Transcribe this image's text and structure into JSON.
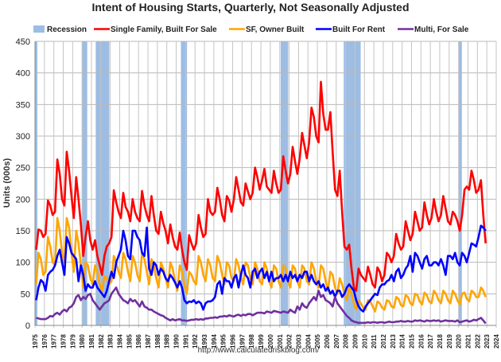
{
  "chart_data": {
    "type": "line",
    "title": "Intent of Housing Starts, Quarterly, Not Seasonally Adjusted",
    "ylabel": "Units (000s)",
    "xlabel": "",
    "source": "http://www.calculatedriskblog.com/",
    "ylim": [
      0,
      450
    ],
    "yticks": [
      0,
      50,
      100,
      150,
      200,
      250,
      300,
      350,
      400,
      450
    ],
    "xlim": [
      1975,
      2024
    ],
    "xticks": [
      "1975",
      "1976",
      "1977",
      "1978",
      "1979",
      "1980",
      "1981",
      "1982",
      "1983",
      "1984",
      "1985",
      "1986",
      "1987",
      "1988",
      "1989",
      "1990",
      "1991",
      "1992",
      "1993",
      "1994",
      "1995",
      "1996",
      "1997",
      "1998",
      "1999",
      "2000",
      "2001",
      "2002",
      "2003",
      "2004",
      "2005",
      "2006",
      "2007",
      "2008",
      "2009",
      "2010",
      "2011",
      "2012",
      "2013",
      "2014",
      "2015",
      "2016",
      "2017",
      "2018",
      "2019",
      "2020",
      "2021",
      "2022",
      "2023",
      "2024"
    ],
    "grid": true,
    "legend_position": "top",
    "start_period": "1975 Q1",
    "frequency": "quarterly",
    "recession": {
      "name": "Recession",
      "color": "#9dbde3",
      "periods": [
        [
          1975.0,
          1975.25
        ],
        [
          1980.0,
          1980.55
        ],
        [
          1981.45,
          1982.9
        ],
        [
          1990.5,
          1991.15
        ],
        [
          2001.1,
          2001.9
        ],
        [
          2007.8,
          2009.6
        ],
        [
          2020.0,
          2020.35
        ]
      ]
    },
    "series": [
      {
        "name": "Single Family, Built For Sale",
        "color": "#ff0000",
        "values": [
          120,
          152,
          150,
          140,
          145,
          198,
          190,
          175,
          180,
          263,
          240,
          200,
          190,
          275,
          245,
          205,
          170,
          235,
          200,
          160,
          110,
          140,
          165,
          135,
          120,
          135,
          110,
          95,
          80,
          110,
          125,
          130,
          140,
          214,
          195,
          180,
          170,
          210,
          188,
          180,
          165,
          200,
          180,
          170,
          165,
          213,
          190,
          175,
          165,
          205,
          175,
          150,
          145,
          180,
          162,
          150,
          130,
          160,
          140,
          125,
          120,
          147,
          120,
          100,
          88,
          143,
          130,
          120,
          130,
          175,
          155,
          140,
          145,
          200,
          180,
          175,
          180,
          218,
          200,
          175,
          165,
          205,
          198,
          180,
          200,
          235,
          215,
          195,
          190,
          225,
          212,
          200,
          210,
          250,
          235,
          215,
          230,
          248,
          220,
          215,
          210,
          245,
          225,
          210,
          215,
          268,
          245,
          225,
          240,
          283,
          260,
          240,
          265,
          305,
          285,
          265,
          290,
          345,
          330,
          300,
          290,
          386,
          335,
          310,
          310,
          338,
          275,
          215,
          205,
          245,
          180,
          125,
          120,
          128,
          90,
          60,
          55,
          90,
          80,
          75,
          70,
          93,
          80,
          65,
          60,
          92,
          85,
          70,
          80,
          115,
          110,
          100,
          110,
          145,
          130,
          120,
          125,
          165,
          150,
          135,
          145,
          180,
          165,
          150,
          155,
          195,
          175,
          160,
          170,
          200,
          180,
          165,
          175,
          205,
          185,
          165,
          160,
          180,
          175,
          165,
          150,
          175,
          215,
          220,
          215,
          245,
          230,
          210,
          215,
          230,
          175,
          130
        ]
      },
      {
        "name": "SF, Owner Built",
        "color": "#ffa500",
        "values": [
          65,
          115,
          105,
          80,
          85,
          140,
          125,
          100,
          95,
          170,
          150,
          115,
          100,
          170,
          155,
          115,
          85,
          150,
          130,
          95,
          60,
          100,
          95,
          75,
          65,
          95,
          85,
          65,
          55,
          78,
          75,
          65,
          70,
          110,
          100,
          85,
          75,
          115,
          105,
          85,
          70,
          110,
          100,
          80,
          70,
          115,
          105,
          85,
          65,
          105,
          95,
          75,
          60,
          100,
          90,
          75,
          60,
          100,
          90,
          70,
          55,
          95,
          85,
          65,
          50,
          85,
          80,
          70,
          65,
          110,
          100,
          80,
          70,
          105,
          95,
          75,
          70,
          110,
          100,
          80,
          65,
          100,
          95,
          75,
          70,
          105,
          95,
          75,
          65,
          100,
          95,
          75,
          65,
          100,
          90,
          70,
          65,
          100,
          90,
          70,
          60,
          95,
          90,
          70,
          60,
          95,
          90,
          70,
          60,
          95,
          90,
          70,
          60,
          95,
          90,
          70,
          65,
          100,
          90,
          70,
          60,
          95,
          90,
          70,
          55,
          85,
          80,
          60,
          50,
          75,
          65,
          50,
          40,
          60,
          50,
          35,
          25,
          40,
          35,
          28,
          25,
          40,
          38,
          30,
          22,
          38,
          35,
          28,
          25,
          40,
          38,
          30,
          28,
          45,
          42,
          32,
          30,
          48,
          45,
          35,
          32,
          50,
          48,
          38,
          33,
          52,
          48,
          38,
          35,
          55,
          50,
          40,
          35,
          55,
          50,
          40,
          35,
          55,
          50,
          40,
          33,
          50,
          52,
          42,
          38,
          55,
          52,
          45,
          45,
          60,
          55,
          45
        ]
      },
      {
        "name": "Built For Rent",
        "color": "#0000ff",
        "values": [
          40,
          60,
          72,
          68,
          55,
          80,
          85,
          88,
          95,
          110,
          120,
          100,
          80,
          140,
          130,
          115,
          110,
          105,
          70,
          95,
          80,
          55,
          65,
          60,
          60,
          70,
          60,
          55,
          50,
          45,
          55,
          70,
          85,
          75,
          100,
          110,
          120,
          150,
          135,
          110,
          105,
          150,
          150,
          140,
          135,
          115,
          110,
          155,
          90,
          80,
          100,
          95,
          80,
          90,
          85,
          75,
          70,
          80,
          75,
          68,
          60,
          70,
          60,
          40,
          35,
          38,
          37,
          40,
          35,
          38,
          35,
          25,
          35,
          38,
          38,
          40,
          45,
          65,
          70,
          50,
          75,
          70,
          70,
          60,
          75,
          80,
          60,
          80,
          95,
          80,
          75,
          60,
          85,
          90,
          75,
          85,
          90,
          75,
          85,
          70,
          85,
          70,
          75,
          75,
          80,
          70,
          80,
          70,
          85,
          75,
          80,
          70,
          80,
          75,
          85,
          85,
          70,
          80,
          70,
          65,
          70,
          60,
          65,
          55,
          60,
          50,
          55,
          45,
          55,
          55,
          45,
          50,
          60,
          65,
          60,
          55,
          40,
          30,
          25,
          22,
          30,
          35,
          40,
          45,
          50,
          48,
          60,
          65,
          65,
          70,
          72,
          80,
          70,
          85,
          90,
          75,
          80,
          90,
          95,
          110,
          85,
          115,
          110,
          100,
          90,
          105,
          110,
          95,
          95,
          100,
          100,
          95,
          105,
          95,
          80,
          110,
          110,
          105,
          115,
          100,
          95,
          115,
          110,
          100,
          115,
          130,
          128,
          125,
          140,
          158,
          155,
          150
        ]
      },
      {
        "name": "Multi, For Sale",
        "color": "#7030a0",
        "values": [
          12,
          11,
          10,
          10,
          10,
          12,
          15,
          14,
          18,
          20,
          17,
          22,
          25,
          22,
          28,
          30,
          35,
          45,
          48,
          40,
          45,
          42,
          48,
          50,
          40,
          35,
          30,
          25,
          30,
          35,
          37,
          40,
          50,
          55,
          60,
          50,
          45,
          40,
          38,
          35,
          42,
          38,
          40,
          35,
          30,
          38,
          30,
          28,
          25,
          25,
          22,
          20,
          18,
          16,
          15,
          12,
          10,
          8,
          10,
          8,
          9,
          10,
          8,
          8,
          7,
          8,
          9,
          9,
          10,
          9,
          10,
          9,
          11,
          11,
          12,
          12,
          13,
          12,
          14,
          14,
          15,
          14,
          16,
          15,
          14,
          16,
          17,
          15,
          17,
          16,
          18,
          18,
          16,
          18,
          20,
          20,
          20,
          19,
          22,
          21,
          20,
          23,
          22,
          21,
          20,
          22,
          21,
          20,
          25,
          22,
          20,
          30,
          25,
          35,
          30,
          28,
          35,
          40,
          45,
          40,
          55,
          45,
          48,
          40,
          38,
          35,
          30,
          45,
          35,
          30,
          25,
          20,
          15,
          12,
          8,
          6,
          5,
          4,
          4,
          4,
          4,
          5,
          4,
          5,
          5,
          4,
          5,
          5,
          4,
          5,
          6,
          5,
          5,
          6,
          6,
          7,
          6,
          6,
          7,
          6,
          6,
          8,
          7,
          8,
          7,
          6,
          8,
          7,
          7,
          8,
          7,
          8,
          6,
          7,
          8,
          7,
          7,
          7,
          6,
          8,
          5,
          6,
          7,
          8,
          6,
          7,
          9,
          8,
          10,
          12,
          8,
          3
        ]
      }
    ]
  }
}
